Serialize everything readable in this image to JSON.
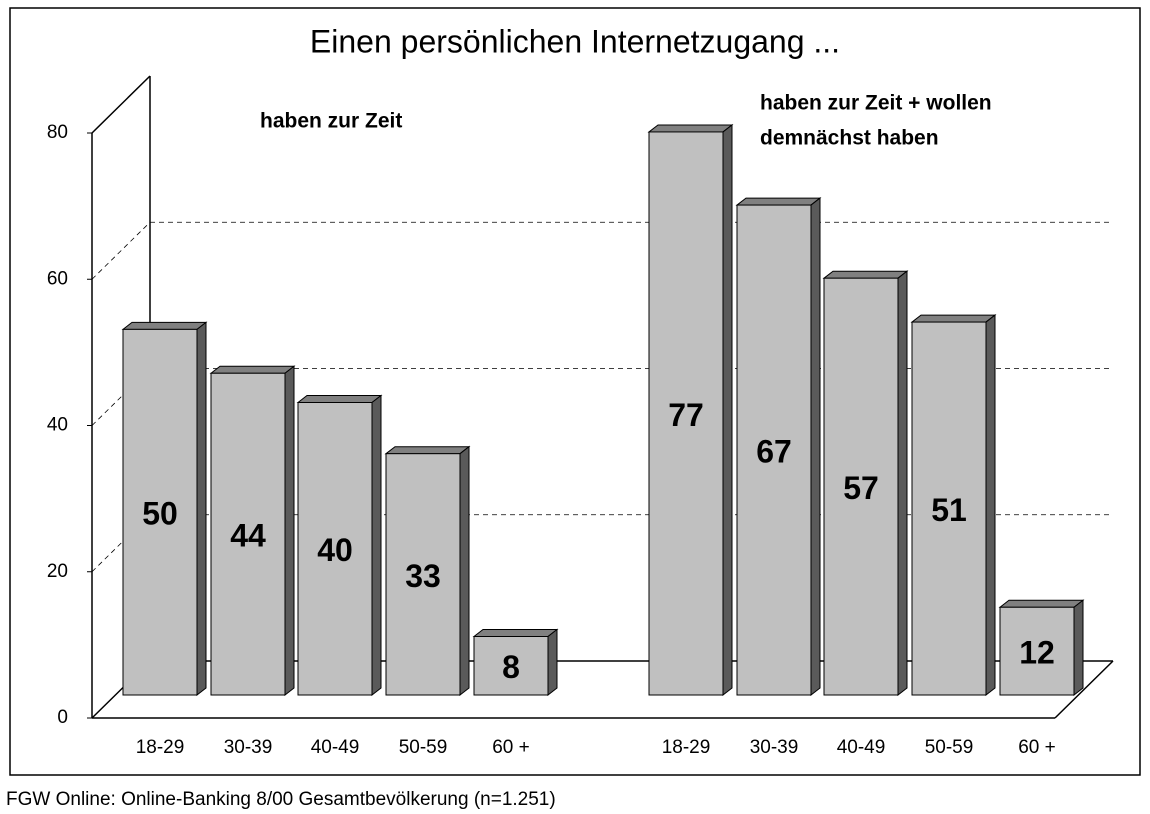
{
  "chart_data": {
    "type": "bar3d",
    "title": "Einen persönlichen Internetzugang ...",
    "annotations": [
      [
        "haben zur Zeit"
      ],
      [
        "haben zur Zeit + wollen",
        "demnächst haben"
      ]
    ],
    "categories": [
      "18-29",
      "30-39",
      "40-49",
      "50-59",
      "60 +",
      "18-29",
      "30-39",
      "40-49",
      "50-59",
      "60 +"
    ],
    "values": [
      50,
      44,
      40,
      33,
      8,
      77,
      67,
      57,
      51,
      12
    ],
    "color": "#c0c0c0",
    "ylim": [
      0,
      80
    ],
    "yticks": [
      0,
      20,
      40,
      60,
      80
    ],
    "grid": true,
    "source": "FGW Online: Online-Banking 8/00 Gesamtbevölkerung (n=1.251)"
  }
}
